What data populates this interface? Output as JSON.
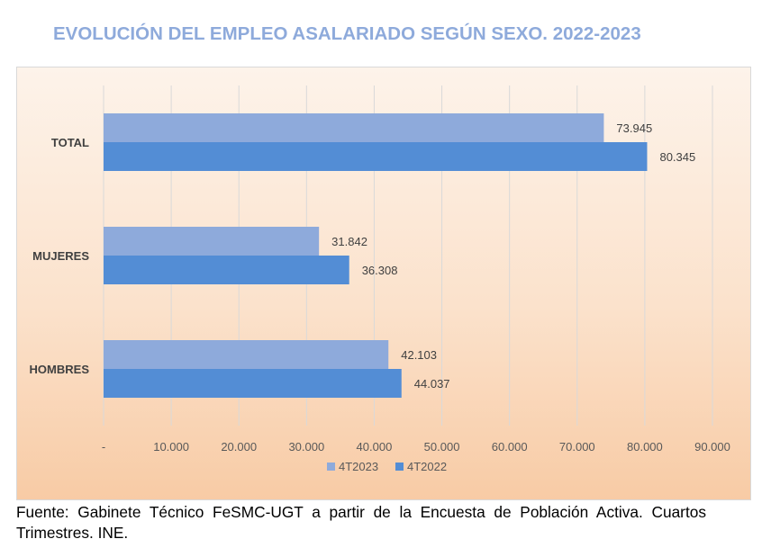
{
  "title": "EVOLUCIÓN DEL EMPLEO ASALARIADO SEGÚN SEXO. 2022-2023",
  "source": "Fuente: Gabinete Técnico FeSMC-UGT a partir de la Encuesta de Población Activa. Cuartos Trimestres. INE.",
  "chart_data": {
    "type": "bar",
    "orientation": "horizontal",
    "categories": [
      "TOTAL",
      "MUJERES",
      "HOMBRES"
    ],
    "series": [
      {
        "name": "4T2023",
        "color": "#8eaadb",
        "values": [
          73945,
          31842,
          42103
        ],
        "labels": [
          "73.945",
          "31.842",
          "42.103"
        ]
      },
      {
        "name": "4T2022",
        "color": "#538dd5",
        "values": [
          80345,
          36308,
          44037
        ],
        "labels": [
          "80.345",
          "36.308",
          "44.037"
        ]
      }
    ],
    "x_ticks": [
      0,
      10000,
      20000,
      30000,
      40000,
      50000,
      60000,
      70000,
      80000,
      90000
    ],
    "x_tick_labels": [
      "-",
      "10.000",
      "20.000",
      "30.000",
      "40.000",
      "50.000",
      "60.000",
      "70.000",
      "80.000",
      "90.000"
    ],
    "xlim": [
      0,
      90000
    ],
    "grid": true,
    "legend_position": "bottom",
    "title": "",
    "xlabel": "",
    "ylabel": ""
  }
}
